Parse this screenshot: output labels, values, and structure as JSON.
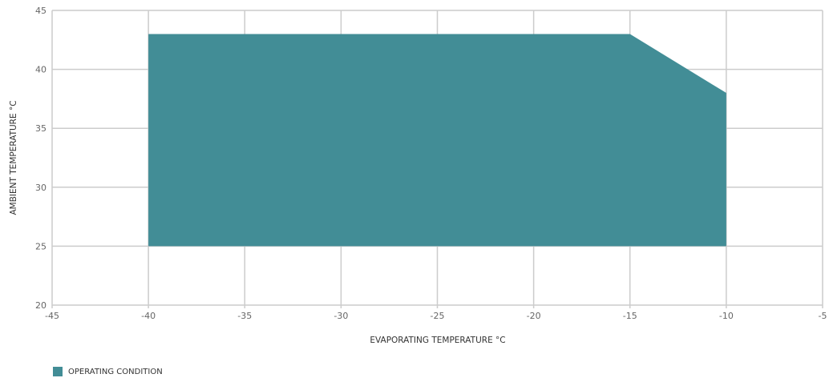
{
  "chart_data": {
    "type": "area",
    "xlabel": "EVAPORATING TEMPERATURE °C",
    "ylabel": "AMBIENT TEMPERATURE °C",
    "xlim": [
      -45,
      -5
    ],
    "ylim": [
      20,
      45
    ],
    "xticks": [
      -45,
      -40,
      -35,
      -30,
      -25,
      -20,
      -15,
      -10,
      -5
    ],
    "yticks": [
      20,
      25,
      30,
      35,
      40,
      45
    ],
    "grid": true,
    "legend_position": "bottom-left",
    "series": [
      {
        "name": "OPERATING CONDITION",
        "color": "#428d96",
        "polygon": [
          {
            "x": -40,
            "y": 25
          },
          {
            "x": -40,
            "y": 43
          },
          {
            "x": -15,
            "y": 43
          },
          {
            "x": -10,
            "y": 38
          },
          {
            "x": -10,
            "y": 25
          }
        ]
      }
    ]
  }
}
